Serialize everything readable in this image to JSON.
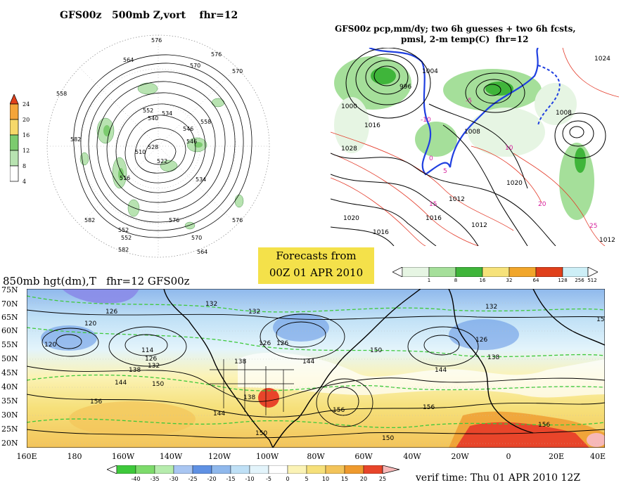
{
  "panels": {
    "top_left": {
      "title": "GFS00z   500mb Z,vort    fhr=12",
      "colorbar_ticks": [
        "24",
        "20",
        "16",
        "12",
        "8",
        "4"
      ],
      "contour_labels": [
        "576",
        "570",
        "564",
        "558",
        "552",
        "546",
        "540",
        "534",
        "528",
        "522",
        "516",
        "510",
        "576",
        "570",
        "582",
        "558",
        "546",
        "576",
        "534",
        "552",
        "576",
        "570",
        "582",
        "552",
        "564",
        "582"
      ]
    },
    "top_right": {
      "title_line1": "GFS00z pcp,mm/dy; two 6h guesses + two 6h fcsts,",
      "title_line2": "pmsl, 2-m temp(C)  fhr=12",
      "pressure_labels": [
        "1024",
        "1020",
        "1028",
        "1016",
        "1000",
        "996",
        "1004",
        "1008",
        "1012",
        "1016",
        "1020",
        "1008",
        "1012",
        "1016",
        "1012"
      ],
      "temp_labels": [
        "-10",
        "-5",
        "0",
        "5",
        "10",
        "15",
        "20",
        "25"
      ],
      "colorbar_ticks": [
        "1",
        "8",
        "16",
        "32",
        "64",
        "128",
        "256",
        "512"
      ]
    },
    "bottom": {
      "title": "850mb hgt(dm),T   fhr=12 GFS00z",
      "lat_labels": [
        "75N",
        "70N",
        "65N",
        "60N",
        "55N",
        "50N",
        "45N",
        "40N",
        "35N",
        "30N",
        "25N",
        "20N"
      ],
      "lon_labels": [
        "160E",
        "180",
        "160W",
        "140W",
        "120W",
        "100W",
        "80W",
        "60W",
        "40W",
        "20W",
        "0",
        "20E",
        "40E"
      ],
      "height_labels": [
        "126",
        "120",
        "120",
        "114",
        "126",
        "132",
        "138",
        "144",
        "150",
        "156",
        "132",
        "138",
        "126",
        "144",
        "150",
        "132",
        "126",
        "138",
        "144",
        "150",
        "156",
        "144",
        "150",
        "156",
        "132",
        "138",
        "150",
        "156",
        "126"
      ],
      "colorbar_ticks": [
        "-40",
        "-35",
        "-30",
        "-25",
        "-20",
        "-15",
        "-10",
        "-5",
        "0",
        "5",
        "10",
        "15",
        "20",
        "25"
      ]
    }
  },
  "banner": {
    "line1": "Forecasts from",
    "line2": "00Z 01 APR 2010"
  },
  "verif_time": "verif time: Thu 01 APR 2010 12Z",
  "colors": {
    "precip_scale": [
      "#e6f5e3",
      "#a5df9a",
      "#3fb53a",
      "#f6e27a",
      "#f1a62b",
      "#e0401b",
      "#cdeff7"
    ],
    "temp_scale": [
      "#3ec93b",
      "#7ddb6b",
      "#b6ecad",
      "#a9c6f2",
      "#5f91e4",
      "#8fb8ec",
      "#bfe0f6",
      "#e3f4fb",
      "#ffffff",
      "#fbf3b6",
      "#f6e07a",
      "#f3c45a",
      "#ef9a2e",
      "#e8452a",
      "#f7b8b8"
    ],
    "vort_scale": [
      "#ffffff",
      "#b8e3b1",
      "#7ccb6f",
      "#f6d86a",
      "#f4a53a",
      "#e0401b"
    ]
  }
}
